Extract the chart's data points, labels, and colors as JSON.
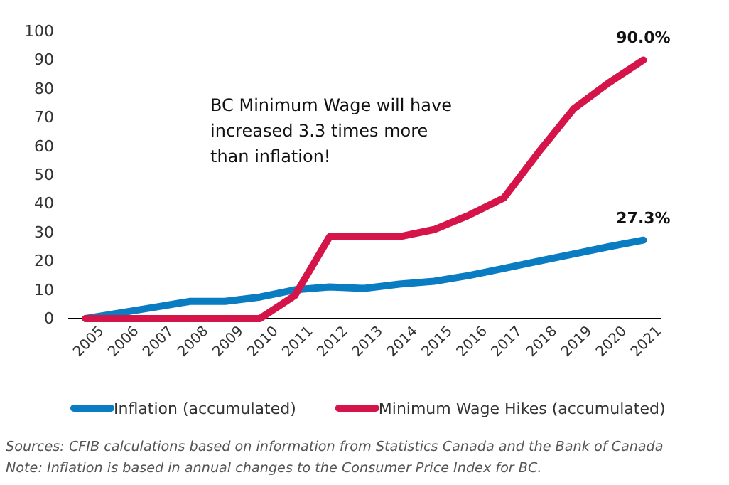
{
  "chart_data": {
    "type": "line",
    "categories": [
      "2005",
      "2006",
      "2007",
      "2008",
      "2009",
      "2010",
      "2011",
      "2012",
      "2013",
      "2014",
      "2015",
      "2016",
      "2017",
      "2018",
      "2019",
      "2020",
      "2021"
    ],
    "series": [
      {
        "name": "Inflation (accumulated)",
        "color": "#0a7cc1",
        "values": [
          0,
          2,
          4,
          6,
          6,
          7.5,
          10,
          11,
          10.5,
          12,
          13,
          15,
          17.5,
          20,
          22.5,
          25,
          27.3
        ],
        "value_labels": [
          null,
          null,
          null,
          null,
          null,
          null,
          null,
          null,
          null,
          null,
          null,
          null,
          null,
          null,
          null,
          null,
          "27.3%"
        ]
      },
      {
        "name": "Minimum Wage Hikes (accumulated)",
        "color": "#d5154a",
        "values": [
          0,
          0,
          0,
          0,
          0,
          0,
          8,
          28.5,
          28.5,
          28.5,
          31,
          36,
          42,
          58,
          73,
          82,
          90.0
        ],
        "value_labels": [
          null,
          null,
          null,
          null,
          null,
          null,
          null,
          null,
          null,
          null,
          null,
          null,
          null,
          null,
          null,
          null,
          "90.0%"
        ]
      }
    ],
    "ylim": [
      0,
      100
    ],
    "yticks": [
      0,
      10,
      20,
      30,
      40,
      50,
      60,
      70,
      80,
      90,
      100
    ],
    "grid": false,
    "legend": "bottom",
    "marker": "none",
    "line_style": "solid",
    "annotations": [
      "BC Minimum Wage will have increased 3.3 times more than inflation!",
      "Sources: CFIB calculations based on information from Statistics Canada and the Bank of Canada",
      "Note: Inflation is based in annual changes to the Consumer Price Index for BC."
    ]
  }
}
